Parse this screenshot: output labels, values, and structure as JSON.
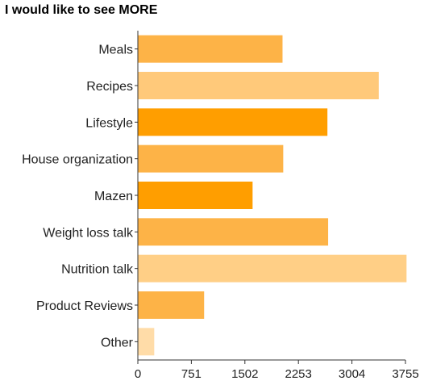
{
  "chart_data": {
    "type": "bar",
    "orientation": "horizontal",
    "title": "I would like to see MORE",
    "xlabel": "",
    "ylabel": "",
    "categories": [
      "Meals",
      "Recipes",
      "Lifestyle",
      "House organization",
      "Mazen",
      "Weight loss talk",
      "Nutrition talk",
      "Product Reviews",
      "Other"
    ],
    "values": [
      2030,
      3380,
      2660,
      2040,
      1610,
      2670,
      3770,
      930,
      230
    ],
    "colors": [
      "#fdb347",
      "#ffc97a",
      "#ff9e00",
      "#fdb347",
      "#ff9e00",
      "#fdb347",
      "#ffcf86",
      "#fdb347",
      "#ffdca8"
    ],
    "xlim": [
      0,
      3755
    ],
    "xticks": [
      "0",
      "751",
      "1502",
      "2253",
      "3004",
      "3755"
    ],
    "grid": false,
    "legend": "none"
  }
}
